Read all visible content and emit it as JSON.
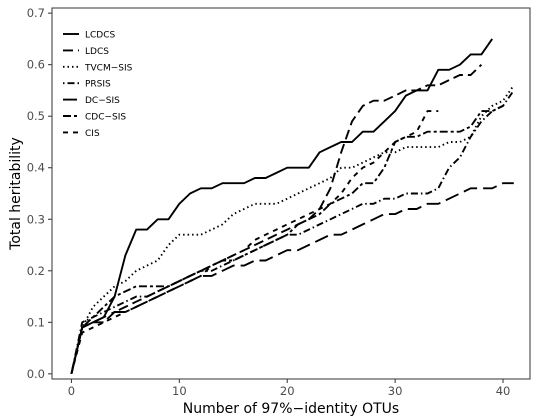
{
  "chart_data": {
    "type": "line",
    "title": "",
    "xlabel": "Number of 97%−identity OTUs",
    "ylabel": "Total heritability",
    "xlim": [
      -1.8,
      42.5
    ],
    "ylim": [
      -0.01,
      0.71
    ],
    "xticks": [
      0,
      10,
      20,
      30,
      40
    ],
    "yticks": [
      0.0,
      0.1,
      0.2,
      0.3,
      0.4,
      0.5,
      0.6,
      0.7
    ],
    "xtick_labels": [
      "0",
      "10",
      "20",
      "30",
      "40"
    ],
    "ytick_labels": [
      "0.0",
      "0.1",
      "0.2",
      "0.3",
      "0.4",
      "0.5",
      "0.6",
      "0.7"
    ],
    "grid": false,
    "legend": "top-left",
    "series": [
      {
        "name": "LCDCS",
        "dash": "solid",
        "x": [
          0,
          1,
          2,
          3,
          4,
          5,
          6,
          7,
          8,
          9,
          10,
          11,
          12,
          13,
          14,
          15,
          16,
          17,
          18,
          19,
          20,
          21,
          22,
          23,
          24,
          25,
          26,
          27,
          28,
          29,
          30,
          31,
          32,
          33,
          34,
          35,
          36,
          37,
          38,
          39
        ],
        "y": [
          0.0,
          0.09,
          0.1,
          0.11,
          0.15,
          0.23,
          0.28,
          0.28,
          0.3,
          0.3,
          0.33,
          0.35,
          0.36,
          0.36,
          0.37,
          0.37,
          0.37,
          0.38,
          0.38,
          0.39,
          0.4,
          0.4,
          0.4,
          0.43,
          0.44,
          0.45,
          0.45,
          0.47,
          0.47,
          0.49,
          0.51,
          0.54,
          0.55,
          0.55,
          0.59,
          0.59,
          0.6,
          0.62,
          0.62,
          0.65
        ]
      },
      {
        "name": "LDCS",
        "dash": "long",
        "x": [
          0,
          1,
          2,
          3,
          4,
          5,
          6,
          7,
          8,
          9,
          10,
          11,
          12,
          13,
          14,
          15,
          16,
          17,
          18,
          19,
          20,
          21,
          22,
          23,
          24,
          25,
          26,
          27,
          28,
          29,
          30,
          31,
          32,
          33,
          34,
          35,
          36,
          37,
          38
        ],
        "y": [
          0.0,
          0.09,
          0.1,
          0.1,
          0.12,
          0.13,
          0.14,
          0.15,
          0.16,
          0.17,
          0.18,
          0.19,
          0.2,
          0.21,
          0.22,
          0.23,
          0.24,
          0.25,
          0.26,
          0.27,
          0.28,
          0.29,
          0.3,
          0.32,
          0.36,
          0.43,
          0.49,
          0.52,
          0.53,
          0.53,
          0.54,
          0.55,
          0.55,
          0.56,
          0.56,
          0.57,
          0.58,
          0.58,
          0.6
        ]
      },
      {
        "name": "TVCM−SIS",
        "dash": "dotted",
        "x": [
          0,
          1,
          2,
          3,
          4,
          5,
          6,
          7,
          8,
          9,
          10,
          11,
          12,
          13,
          14,
          15,
          16,
          17,
          18,
          19,
          20,
          21,
          22,
          23,
          24,
          25,
          26,
          27,
          28,
          29,
          30,
          31,
          32,
          33,
          34,
          35,
          36,
          37,
          38,
          39,
          40,
          41
        ],
        "y": [
          0.0,
          0.09,
          0.13,
          0.15,
          0.17,
          0.18,
          0.2,
          0.21,
          0.22,
          0.25,
          0.27,
          0.27,
          0.27,
          0.28,
          0.29,
          0.31,
          0.32,
          0.33,
          0.33,
          0.33,
          0.34,
          0.35,
          0.36,
          0.37,
          0.38,
          0.4,
          0.4,
          0.41,
          0.42,
          0.43,
          0.43,
          0.44,
          0.44,
          0.44,
          0.44,
          0.45,
          0.45,
          0.46,
          0.5,
          0.52,
          0.53,
          0.56
        ]
      },
      {
        "name": "PRSIS",
        "dash": "dotdash",
        "x": [
          0,
          1,
          2,
          3,
          4,
          5,
          6,
          7,
          8,
          9,
          10,
          11,
          12,
          13,
          14,
          15,
          16,
          17,
          18,
          19,
          20,
          21,
          22,
          23,
          24,
          25,
          26,
          27,
          28,
          29,
          30,
          31,
          32,
          33,
          34,
          35,
          36,
          37,
          38,
          39,
          40,
          41
        ],
        "y": [
          0.0,
          0.1,
          0.11,
          0.12,
          0.13,
          0.14,
          0.15,
          0.15,
          0.16,
          0.17,
          0.18,
          0.19,
          0.2,
          0.2,
          0.21,
          0.22,
          0.23,
          0.24,
          0.25,
          0.26,
          0.27,
          0.27,
          0.28,
          0.29,
          0.3,
          0.31,
          0.32,
          0.33,
          0.33,
          0.34,
          0.34,
          0.35,
          0.35,
          0.35,
          0.36,
          0.4,
          0.42,
          0.46,
          0.49,
          0.51,
          0.52,
          0.55
        ]
      },
      {
        "name": "DC−SIS",
        "dash": "longer",
        "x": [
          0,
          1,
          2,
          3,
          4,
          5,
          6,
          7,
          8,
          9,
          10,
          11,
          12,
          13,
          14,
          15,
          16,
          17,
          18,
          19,
          20,
          21,
          22,
          23,
          24,
          25,
          26,
          27,
          28,
          29,
          30,
          31,
          32,
          33,
          34,
          35,
          36,
          37,
          38,
          39,
          40,
          41
        ],
        "y": [
          0.0,
          0.09,
          0.1,
          0.11,
          0.12,
          0.12,
          0.13,
          0.14,
          0.15,
          0.16,
          0.17,
          0.18,
          0.19,
          0.19,
          0.2,
          0.21,
          0.21,
          0.22,
          0.22,
          0.23,
          0.24,
          0.24,
          0.25,
          0.26,
          0.27,
          0.27,
          0.28,
          0.29,
          0.3,
          0.31,
          0.31,
          0.32,
          0.32,
          0.33,
          0.33,
          0.34,
          0.35,
          0.36,
          0.36,
          0.36,
          0.37,
          0.37
        ]
      },
      {
        "name": "CDC−SIS",
        "dash": "twodash",
        "x": [
          0,
          1,
          2,
          3,
          4,
          5,
          6,
          7,
          8,
          9,
          10,
          11,
          12,
          13,
          14,
          15,
          16,
          17,
          18,
          19,
          20,
          21,
          22,
          23,
          24,
          25,
          26,
          27,
          28,
          29,
          30,
          31,
          32,
          33,
          34,
          35,
          36,
          37,
          38,
          39,
          40
        ],
        "y": [
          0.0,
          0.09,
          0.11,
          0.13,
          0.15,
          0.16,
          0.17,
          0.17,
          0.17,
          0.17,
          0.18,
          0.19,
          0.2,
          0.21,
          0.22,
          0.22,
          0.23,
          0.24,
          0.25,
          0.26,
          0.27,
          0.29,
          0.3,
          0.31,
          0.33,
          0.34,
          0.35,
          0.37,
          0.37,
          0.4,
          0.45,
          0.46,
          0.46,
          0.47,
          0.47,
          0.47,
          0.47,
          0.48,
          0.51,
          0.51,
          0.52
        ]
      },
      {
        "name": "CIS",
        "dash": "short",
        "x": [
          0,
          1,
          2,
          3,
          4,
          5,
          6,
          7,
          8,
          9,
          10,
          11,
          12,
          13,
          14,
          15,
          16,
          17,
          18,
          19,
          20,
          21,
          22,
          23,
          24,
          25,
          26,
          27,
          28,
          29,
          30,
          31,
          32,
          33,
          34
        ],
        "y": [
          0.0,
          0.08,
          0.09,
          0.1,
          0.11,
          0.12,
          0.13,
          0.14,
          0.15,
          0.16,
          0.17,
          0.18,
          0.19,
          0.21,
          0.22,
          0.23,
          0.24,
          0.26,
          0.27,
          0.28,
          0.29,
          0.3,
          0.31,
          0.32,
          0.33,
          0.35,
          0.38,
          0.4,
          0.41,
          0.43,
          0.45,
          0.46,
          0.47,
          0.51,
          0.51
        ]
      }
    ]
  }
}
